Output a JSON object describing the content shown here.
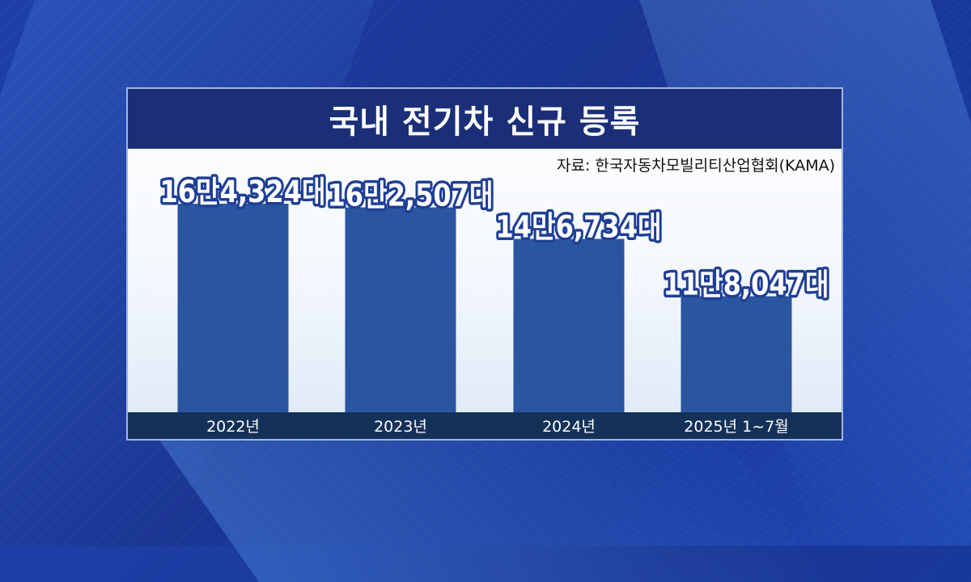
{
  "chart_data": {
    "type": "bar",
    "title": "국내 전기차 신규 등록",
    "source": "자료: 한국자동차모빌리티산업협회(KAMA)",
    "categories": [
      "2022년",
      "2023년",
      "2024년",
      "2025년 1~7월"
    ],
    "values": [
      164324,
      162507,
      146734,
      118047
    ],
    "value_labels": [
      "16만4,324대",
      "16만2,507대",
      "14만6,734대",
      "11만8,047대"
    ],
    "xlabel": "",
    "ylabel": "",
    "ylim": [
      60000,
      170000
    ],
    "grid": false,
    "legend": "none",
    "colors": {
      "bar": "#2a55a0",
      "title_bg": "#1b2f78",
      "axis_band": "#143258"
    }
  }
}
